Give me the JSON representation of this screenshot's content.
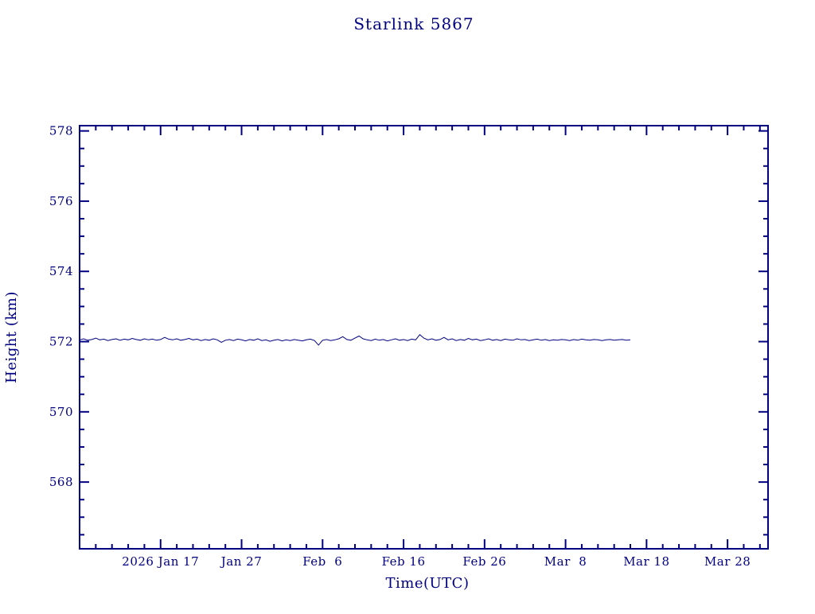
{
  "page": {
    "background_color": "#ffffff"
  },
  "chart_data": {
    "type": "line",
    "title": "Starlink 5867",
    "xlabel": "Time(UTC)",
    "ylabel": "Height (km)",
    "axis_color": "#000080",
    "line_color": "#000080",
    "grid": false,
    "legend": "none",
    "xlim_days": [
      0,
      85
    ],
    "ylim": [
      566.1,
      578.15
    ],
    "x_ticks": [
      {
        "day": 10,
        "label": "2026 Jan 17"
      },
      {
        "day": 20,
        "label": "Jan 27"
      },
      {
        "day": 30,
        "label": "Feb  6"
      },
      {
        "day": 40,
        "label": "Feb 16"
      },
      {
        "day": 50,
        "label": "Feb 26"
      },
      {
        "day": 60,
        "label": "Mar  8"
      },
      {
        "day": 70,
        "label": "Mar 18"
      },
      {
        "day": 80,
        "label": "Mar 28"
      }
    ],
    "x_minor_step_days": 2,
    "y_ticks": [
      568,
      570,
      572,
      574,
      576,
      578
    ],
    "y_minor_step": 0.5,
    "series": [
      {
        "name": "height_km",
        "x_start_day": 0,
        "x_step_days": 0.5,
        "values": [
          572.05,
          572.08,
          572.04,
          572.06,
          572.1,
          572.05,
          572.07,
          572.03,
          572.06,
          572.08,
          572.04,
          572.07,
          572.05,
          572.09,
          572.06,
          572.04,
          572.08,
          572.05,
          572.07,
          572.04,
          572.06,
          572.12,
          572.07,
          572.05,
          572.08,
          572.04,
          572.06,
          572.09,
          572.05,
          572.07,
          572.03,
          572.06,
          572.04,
          572.08,
          572.05,
          571.98,
          572.04,
          572.06,
          572.03,
          572.07,
          572.05,
          572.02,
          572.06,
          572.04,
          572.08,
          572.03,
          572.05,
          572.01,
          572.04,
          572.06,
          572.02,
          572.05,
          572.03,
          572.06,
          572.04,
          572.02,
          572.05,
          572.07,
          572.03,
          571.9,
          572.04,
          572.06,
          572.03,
          572.05,
          572.08,
          572.14,
          572.06,
          572.04,
          572.1,
          572.16,
          572.08,
          572.05,
          572.03,
          572.07,
          572.04,
          572.06,
          572.02,
          572.05,
          572.08,
          572.04,
          572.06,
          572.03,
          572.07,
          572.05,
          572.2,
          572.1,
          572.05,
          572.08,
          572.04,
          572.06,
          572.12,
          572.05,
          572.08,
          572.03,
          572.06,
          572.04,
          572.09,
          572.05,
          572.07,
          572.03,
          572.05,
          572.08,
          572.04,
          572.06,
          572.03,
          572.07,
          572.05,
          572.04,
          572.08,
          572.05,
          572.06,
          572.03,
          572.05,
          572.07,
          572.04,
          572.06,
          572.03,
          572.05,
          572.04,
          572.06,
          572.05,
          572.03,
          572.06,
          572.04,
          572.07,
          572.05,
          572.04,
          572.06,
          572.05,
          572.03,
          572.05,
          572.06,
          572.04,
          572.05,
          572.06,
          572.04,
          572.05
        ]
      }
    ]
  }
}
